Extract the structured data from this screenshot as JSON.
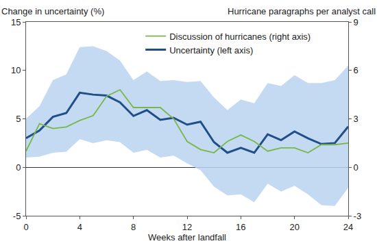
{
  "chart_data": {
    "type": "line",
    "ylabel": "Change in uncertainty (%)",
    "y2label": "Hurricane paragraphs per analyst call",
    "xlabel": "Weeks after landfall",
    "x": [
      0,
      1,
      2,
      3,
      4,
      5,
      6,
      7,
      8,
      9,
      10,
      11,
      12,
      13,
      14,
      15,
      16,
      17,
      18,
      19,
      20,
      21,
      22,
      23,
      24
    ],
    "xlim": [
      0,
      24
    ],
    "xticks": [
      0,
      4,
      8,
      12,
      16,
      20,
      24
    ],
    "ylim": [
      -5,
      15
    ],
    "yticks": [
      -5,
      0,
      5,
      10,
      15
    ],
    "y2lim": [
      -3,
      9
    ],
    "y2ticks": [
      -3,
      0,
      3,
      6,
      9
    ],
    "grid": false,
    "legend": "top",
    "series": [
      {
        "name": "Uncertainty (left axis)",
        "color": "#1f4e89",
        "axis": "y",
        "values": [
          3.0,
          3.8,
          5.2,
          5.6,
          7.7,
          7.5,
          7.4,
          6.7,
          5.3,
          5.9,
          4.9,
          5.1,
          4.4,
          4.7,
          2.6,
          1.5,
          2.0,
          1.5,
          3.4,
          2.8,
          3.7,
          3.0,
          2.4,
          2.5,
          4.2
        ],
        "lower": [
          1.0,
          1.1,
          1.5,
          1.6,
          2.9,
          2.5,
          2.8,
          2.6,
          1.5,
          1.8,
          1.0,
          1.2,
          0.4,
          -0.3,
          -2.0,
          -2.9,
          -2.8,
          -3.6,
          -1.7,
          -2.5,
          -1.9,
          -2.8,
          -3.9,
          -4.0,
          -2.1
        ],
        "upper": [
          5.0,
          6.3,
          9.0,
          9.6,
          12.4,
          12.5,
          12.0,
          11.0,
          9.0,
          9.9,
          8.9,
          9.0,
          8.8,
          8.9,
          7.2,
          5.9,
          7.0,
          6.6,
          8.7,
          8.4,
          9.5,
          8.7,
          8.7,
          9.0,
          10.5
        ]
      },
      {
        "name": "Discussion of hurricanes (right axis)",
        "color": "#7ab547",
        "axis": "y2",
        "values": [
          1.0,
          2.7,
          2.4,
          2.5,
          2.9,
          3.2,
          4.4,
          4.8,
          3.7,
          3.7,
          3.7,
          3.0,
          1.6,
          1.1,
          0.9,
          1.6,
          2.0,
          1.6,
          1.0,
          1.2,
          1.2,
          0.9,
          1.4,
          1.4,
          1.5
        ]
      }
    ]
  }
}
